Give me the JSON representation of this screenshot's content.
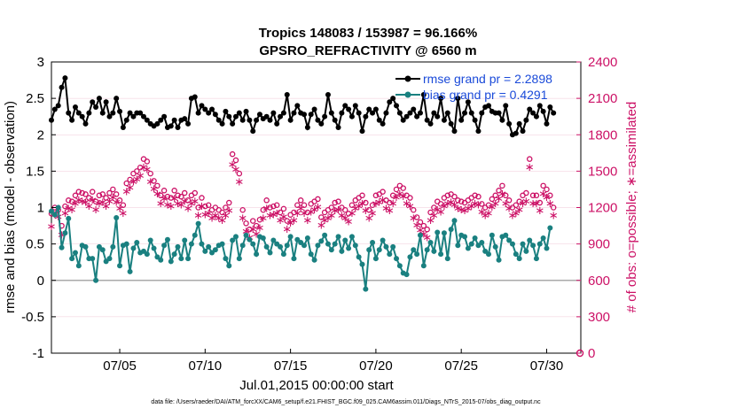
{
  "chart_data": {
    "type": "line",
    "title": "Tropics 148083 / 153987 = 96.166%",
    "subtitle": "GPSRO_REFRACTIVITY @ 6560 m",
    "xlabel": "Jul.01,2015 00:00:00 start",
    "ylabel": "rmse and bias (model - observation)",
    "y2label": "# of obs: o=possible; ∗=assimilated",
    "footnote": "data file: /Users/raeder/DAI/ATM_forcXX/CAM6_setup/f.e21.FHIST_BGC.f09_025.CAM6assim.011/Diags_NTrS_2015-07/obs_diag_output.nc",
    "xlim": [
      1,
      32
    ],
    "ylim": [
      -1,
      3
    ],
    "y2lim": [
      0,
      2400
    ],
    "xticks": [
      5,
      10,
      15,
      20,
      25,
      30
    ],
    "xtick_labels": [
      "07/05",
      "07/10",
      "07/15",
      "07/20",
      "07/25",
      "07/30"
    ],
    "yticks": [
      -1,
      -0.5,
      0,
      0.5,
      1,
      1.5,
      2,
      2.5,
      3
    ],
    "ytick_labels": [
      "-1",
      "-0.5",
      "0",
      "0.5",
      "1",
      "1.5",
      "2",
      "2.5",
      "3"
    ],
    "y2ticks": [
      0,
      300,
      600,
      900,
      1200,
      1500,
      1800,
      2100,
      2400
    ],
    "y2tick_labels": [
      "0",
      "300",
      "600",
      "900",
      "1200",
      "1500",
      "1800",
      "2100",
      "2400"
    ],
    "colors": {
      "rmse": "#000000",
      "bias": "#1a8080",
      "obs": "#cc1166",
      "zero": "#aaaaaa",
      "legend_text": "#1a4ad9"
    },
    "series": [
      {
        "name": "rmse grand pr = 2.2898",
        "values": [
          2.2,
          2.35,
          2.4,
          2.65,
          2.78,
          2.3,
          2.2,
          2.38,
          2.3,
          2.25,
          2.15,
          2.3,
          2.45,
          2.38,
          2.5,
          2.3,
          2.45,
          2.25,
          2.3,
          2.5,
          2.32,
          2.1,
          2.2,
          2.3,
          2.25,
          2.3,
          2.3,
          2.25,
          2.2,
          2.15,
          2.12,
          2.15,
          2.2,
          2.25,
          2.1,
          2.12,
          2.2,
          2.1,
          2.2,
          2.22,
          2.15,
          2.5,
          2.52,
          2.3,
          2.4,
          2.35,
          2.3,
          2.35,
          2.28,
          2.2,
          2.15,
          2.32,
          2.25,
          2.15,
          2.25,
          2.3,
          2.2,
          2.32,
          2.2,
          2.05,
          2.2,
          2.28,
          2.22,
          2.25,
          2.2,
          2.3,
          2.15,
          2.25,
          2.3,
          2.55,
          2.2,
          2.3,
          2.4,
          2.3,
          2.28,
          2.1,
          2.28,
          2.35,
          2.2,
          2.15,
          2.25,
          2.55,
          2.3,
          2.2,
          2.1,
          2.3,
          2.4,
          2.35,
          2.25,
          2.4,
          2.3,
          2.05,
          2.25,
          2.35,
          2.3,
          2.35,
          2.2,
          2.15,
          2.3,
          2.45,
          2.5,
          2.4,
          2.3,
          2.2,
          2.25,
          2.3,
          2.35,
          2.25,
          2.3,
          2.55,
          2.2,
          2.15,
          2.3,
          2.25,
          2.5,
          2.2,
          2.3,
          2.15,
          2.05,
          2.5,
          2.2,
          2.3,
          2.45,
          2.3,
          2.2,
          2.05,
          2.3,
          2.38,
          2.4,
          2.32,
          2.3,
          2.3,
          2.2,
          2.4,
          2.15,
          2.0,
          2.02,
          2.15,
          2.05,
          2.2,
          2.35,
          2.3,
          2.25,
          2.4,
          2.32,
          2.15,
          2.38,
          2.3
        ],
        "x_start": 1.0,
        "x_step": 0.2
      },
      {
        "name": "bias grand pr = 0.4291",
        "values": [
          0.95,
          0.9,
          1.0,
          0.45,
          0.65,
          0.85,
          0.3,
          0.38,
          0.2,
          0.48,
          0.46,
          0.3,
          0.3,
          0.0,
          0.46,
          0.42,
          0.26,
          0.3,
          0.46,
          0.86,
          0.2,
          0.48,
          0.5,
          0.12,
          0.44,
          0.52,
          0.38,
          0.4,
          0.36,
          0.55,
          0.44,
          0.32,
          0.28,
          0.48,
          0.56,
          0.26,
          0.36,
          0.46,
          0.3,
          0.55,
          0.3,
          0.5,
          0.62,
          0.78,
          0.5,
          0.4,
          0.46,
          0.38,
          0.42,
          0.48,
          0.5,
          0.3,
          0.2,
          0.55,
          0.6,
          0.3,
          0.48,
          0.62,
          0.56,
          0.5,
          0.36,
          0.6,
          0.58,
          0.46,
          0.38,
          0.55,
          0.5,
          0.46,
          0.36,
          0.48,
          0.6,
          0.3,
          0.56,
          0.52,
          0.48,
          0.58,
          0.36,
          0.28,
          0.48,
          0.54,
          0.62,
          0.5,
          0.42,
          0.5,
          0.6,
          0.4,
          0.55,
          0.44,
          0.6,
          0.48,
          0.32,
          0.22,
          -0.12,
          0.42,
          0.52,
          0.3,
          0.42,
          0.55,
          0.46,
          0.36,
          0.46,
          0.3,
          0.2,
          0.1,
          0.08,
          0.32,
          0.42,
          0.36,
          0.62,
          0.2,
          0.42,
          0.52,
          0.4,
          0.66,
          0.36,
          0.65,
          0.3,
          0.7,
          0.82,
          0.48,
          0.62,
          0.6,
          0.44,
          0.5,
          0.58,
          0.48,
          0.52,
          0.4,
          0.36,
          0.62,
          0.46,
          0.28,
          0.6,
          0.62,
          0.55,
          0.5,
          0.36,
          0.3,
          0.5,
          0.4,
          0.55,
          0.48,
          0.3,
          0.5,
          0.58,
          0.44,
          0.72
        ],
        "x_start": 1.0,
        "x_step": 0.2
      }
    ],
    "obs_possible": [
      1150,
      1200,
      1180,
      1050,
      1210,
      1260,
      1250,
      1300,
      1330,
      1320,
      1310,
      1280,
      1330,
      1250,
      1300,
      1310,
      1280,
      1320,
      1350,
      1310,
      1260,
      1220,
      1400,
      1430,
      1480,
      1500,
      1530,
      1600,
      1580,
      1480,
      1420,
      1380,
      1300,
      1340,
      1290,
      1280,
      1340,
      1300,
      1290,
      1320,
      1260,
      1300,
      1320,
      1200,
      1280,
      1210,
      1220,
      1180,
      1200,
      1180,
      1160,
      1200,
      1240,
      1640,
      1590,
      1480,
      1180,
      1070,
      1020,
      1090,
      1050,
      1100,
      1180,
      1260,
      1200,
      1210,
      1220,
      1160,
      1190,
      1090,
      1140,
      1160,
      1220,
      1260,
      1220,
      1160,
      1230,
      1250,
      1270,
      1120,
      1160,
      1180,
      1200,
      1240,
      1250,
      1200,
      1180,
      1150,
      1220,
      1260,
      1280,
      1300,
      1240,
      1180,
      1220,
      1300,
      1310,
      1330,
      1260,
      1240,
      1300,
      1350,
      1380,
      1360,
      1300,
      1280,
      1180,
      1120,
      1080,
      1050,
      1020,
      1160,
      1200,
      1250,
      1230,
      1280,
      1300,
      1310,
      1290,
      1260,
      1250,
      1240,
      1260,
      1280,
      1300,
      1290,
      1230,
      1200,
      1220,
      1270,
      1300,
      1340,
      1380,
      1300,
      1260,
      1200,
      1220,
      1250,
      1300,
      1320,
      1600,
      1300,
      1300,
      1240,
      1380,
      1350,
      1300,
      1200
    ],
    "obs_assimilated": [
      1050,
      1150,
      1130,
      980,
      1160,
      1200,
      1190,
      1240,
      1270,
      1260,
      1250,
      1220,
      1270,
      1190,
      1240,
      1250,
      1220,
      1260,
      1290,
      1250,
      1200,
      1160,
      1340,
      1370,
      1420,
      1440,
      1470,
      1540,
      1520,
      1420,
      1360,
      1320,
      1240,
      1280,
      1230,
      1220,
      1280,
      1240,
      1230,
      1260,
      1200,
      1240,
      1260,
      1140,
      1220,
      1150,
      1160,
      1120,
      1140,
      1120,
      1100,
      1140,
      1180,
      1560,
      1520,
      1420,
      1120,
      1010,
      960,
      1030,
      990,
      1040,
      1120,
      1200,
      1140,
      1150,
      1160,
      1100,
      1130,
      1030,
      1080,
      1100,
      1160,
      1200,
      1160,
      1100,
      1170,
      1190,
      1210,
      1060,
      1100,
      1120,
      1140,
      1180,
      1190,
      1140,
      1120,
      1090,
      1160,
      1200,
      1220,
      1240,
      1180,
      1120,
      1160,
      1240,
      1250,
      1270,
      1200,
      1180,
      1240,
      1290,
      1320,
      1300,
      1240,
      1220,
      1120,
      1060,
      1020,
      990,
      960,
      1100,
      1140,
      1190,
      1170,
      1220,
      1240,
      1250,
      1230,
      1200,
      1190,
      1180,
      1200,
      1220,
      1240,
      1230,
      1170,
      1140,
      1160,
      1210,
      1240,
      1280,
      1320,
      1240,
      1200,
      1140,
      1160,
      1190,
      1240,
      1260,
      1540,
      1240,
      1240,
      1180,
      1320,
      1290,
      1240,
      1140
    ]
  }
}
